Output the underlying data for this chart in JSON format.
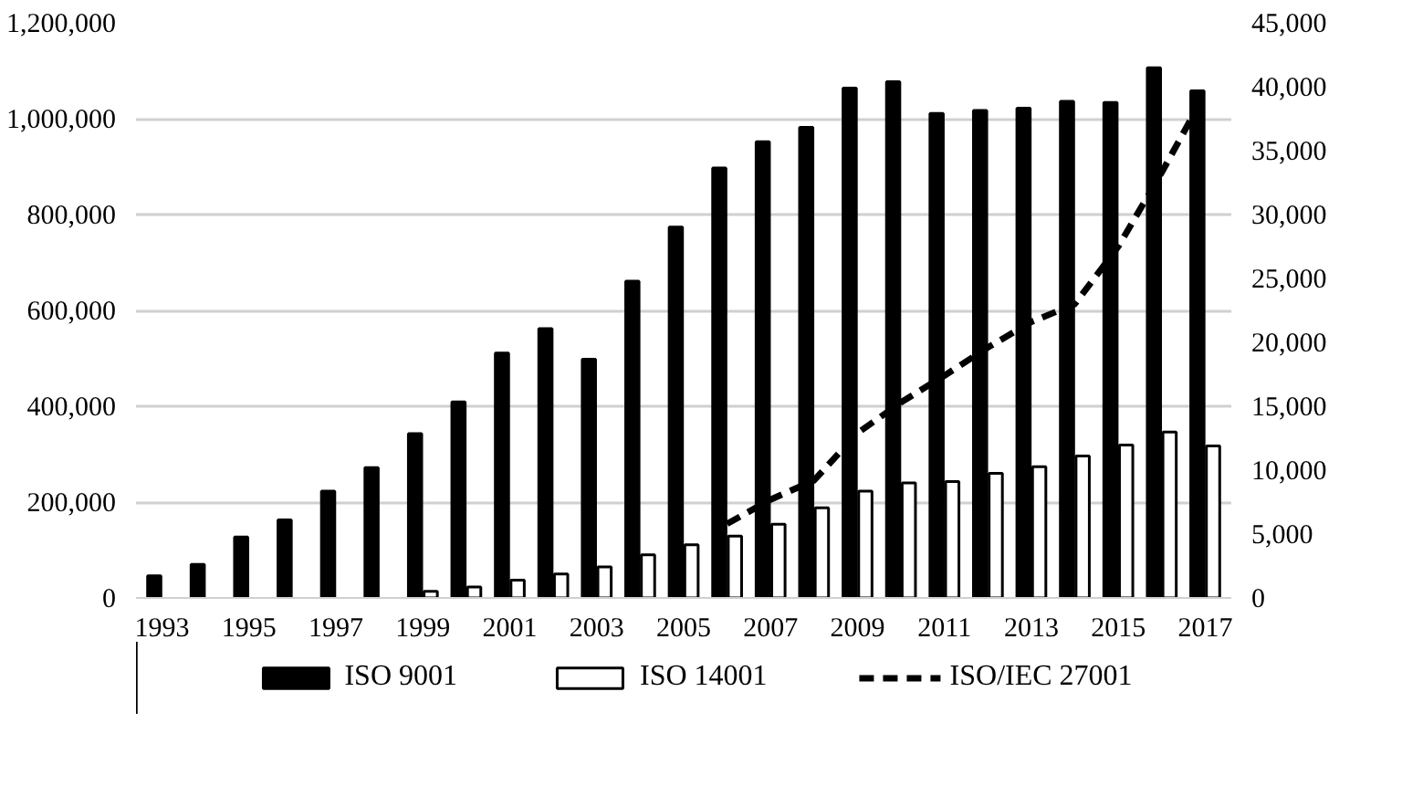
{
  "chart_data": {
    "type": "bar",
    "categories": [
      "1993",
      null,
      "1995",
      null,
      "1997",
      null,
      "1999",
      null,
      "2001",
      null,
      "2003",
      null,
      "2005",
      null,
      "2007",
      null,
      "2009",
      null,
      "2011",
      null,
      "2013",
      null,
      "2015",
      null,
      "2017"
    ],
    "series": [
      {
        "name": "ISO 9001",
        "color": "#000000",
        "values": [
          46000,
          70000,
          127000,
          163000,
          223000,
          272000,
          343000,
          409000,
          511000,
          562000,
          498000,
          661000,
          774000,
          897000,
          952000,
          982000,
          1064000,
          1077000,
          1011000,
          1017000,
          1022000,
          1036000,
          1034000,
          1106000,
          1058000
        ]
      },
      {
        "name": "ISO 14001",
        "color": "#ffffff",
        "values": [
          null,
          null,
          null,
          null,
          null,
          null,
          14000,
          23000,
          37000,
          50000,
          65000,
          90000,
          111000,
          129000,
          154000,
          188000,
          223000,
          240000,
          243000,
          260000,
          274000,
          296000,
          319000,
          346000,
          317000
        ]
      },
      {
        "name": "ISO/IEC 27001",
        "type": "line",
        "axis": "y2",
        "color": "#000000",
        "line_style": "dashed",
        "values": [
          null,
          null,
          null,
          null,
          null,
          null,
          null,
          null,
          null,
          null,
          null,
          null,
          null,
          5800,
          7700,
          9200,
          12900,
          15300,
          17400,
          19600,
          21600,
          23000,
          27500,
          33300,
          39500
        ]
      }
    ],
    "ylim": [
      0,
      1200000
    ],
    "yticks": [
      0,
      {
        "value": 200000,
        "label": "200,000"
      },
      {
        "value": 400000,
        "label": "400,000"
      },
      {
        "value": 600000,
        "label": "600,000"
      },
      {
        "value": 800000,
        "label": "800,000"
      },
      {
        "value": 1000000,
        "label": "1,000,000"
      },
      {
        "value": 1200000,
        "label": "1,200,000"
      }
    ],
    "y2lim": [
      0,
      45000
    ],
    "y2ticks": [
      0,
      {
        "value": 5000,
        "label": "5,000"
      },
      {
        "value": 10000,
        "label": "10,000"
      },
      {
        "value": 15000,
        "label": "15,000"
      },
      {
        "value": 20000,
        "label": "20,000"
      },
      {
        "value": 25000,
        "label": "25,000"
      },
      {
        "value": 30000,
        "label": "30,000"
      },
      {
        "value": 35000,
        "label": "35,000"
      },
      {
        "value": 40000,
        "label": "40,000"
      },
      {
        "value": 45000,
        "label": "45,000"
      }
    ],
    "grid": "y",
    "legend": "bottom"
  }
}
